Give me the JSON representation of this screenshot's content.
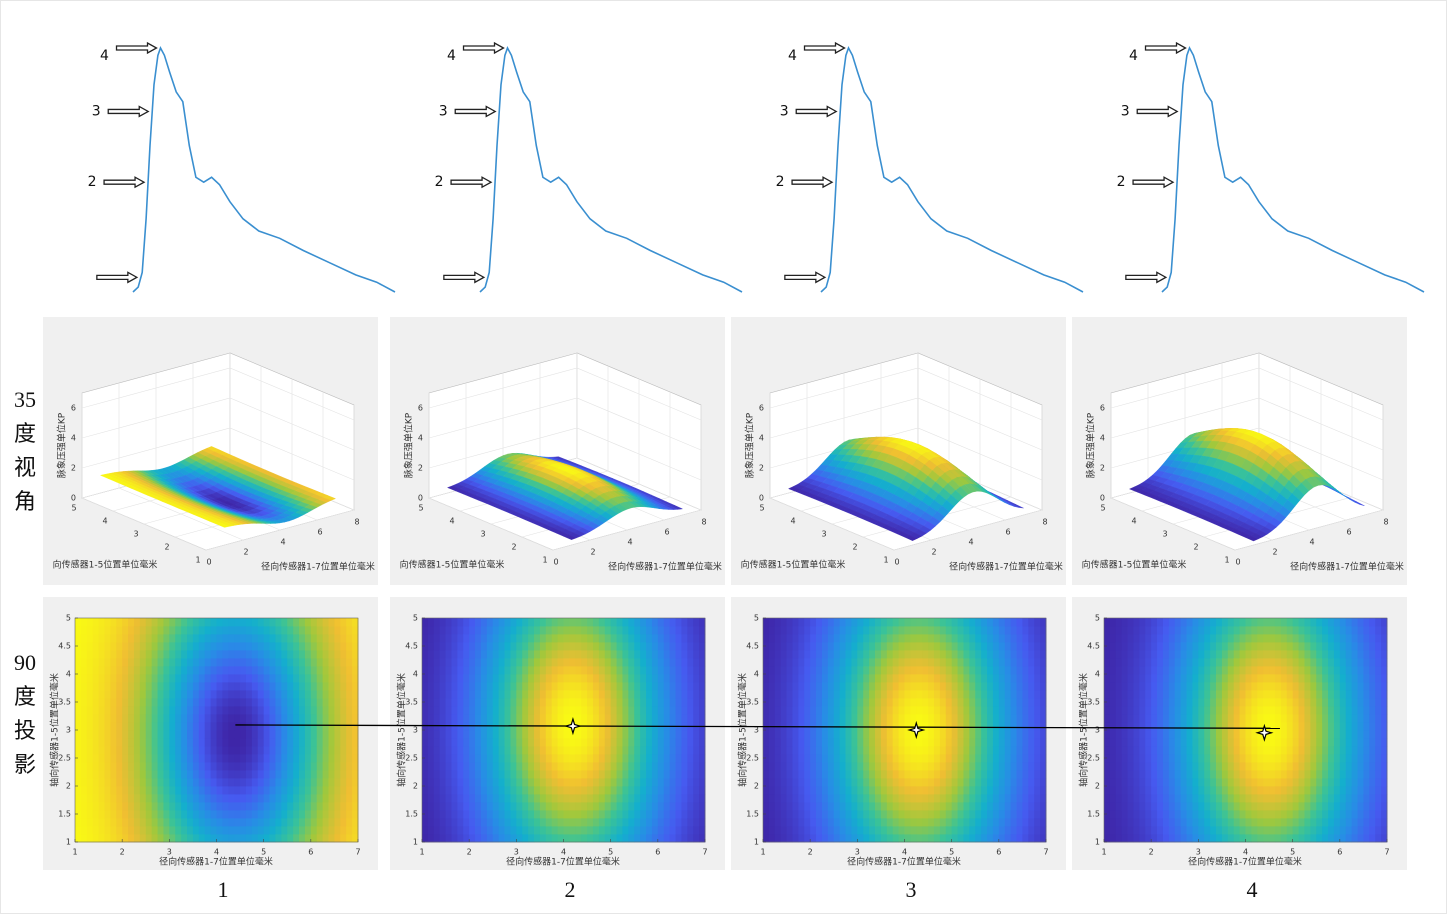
{
  "row_labels": {
    "view_35": [
      "35",
      "度",
      "视",
      "角"
    ],
    "view_90": [
      "90",
      "度",
      "投",
      "影"
    ]
  },
  "waveform": {
    "x": [
      0,
      0.02,
      0.035,
      0.05,
      0.065,
      0.08,
      0.095,
      0.105,
      0.12,
      0.14,
      0.165,
      0.19,
      0.215,
      0.24,
      0.27,
      0.3,
      0.33,
      0.37,
      0.42,
      0.48,
      0.56,
      0.65,
      0.75,
      0.85,
      0.93,
      1
    ],
    "y": [
      0,
      0.02,
      0.08,
      0.3,
      0.6,
      0.85,
      0.97,
      1,
      0.97,
      0.9,
      0.82,
      0.78,
      0.6,
      0.47,
      0.45,
      0.47,
      0.44,
      0.37,
      0.3,
      0.25,
      0.22,
      0.17,
      0.12,
      0.07,
      0.04,
      0
    ]
  },
  "surface_3d": {
    "zlabel": "脉象压强单位KP",
    "ylabel": "向传感器1-5位置单位毫米",
    "xlabel": "径向传感器1-7位置单位毫米",
    "xlim": [
      0,
      8
    ],
    "ylim": [
      1,
      5
    ],
    "zlim": [
      0,
      7
    ],
    "xticks": [
      0,
      2,
      4,
      6,
      8
    ],
    "yticks": [
      1,
      2,
      3,
      4,
      5
    ],
    "zticks": [
      0,
      2,
      4,
      6
    ]
  },
  "heatmap": {
    "xlabel": "径向传感器1-7位置单位毫米",
    "ylabel": "轴向传感器1-5位置单位毫米",
    "xlim": [
      1,
      7
    ],
    "ylim": [
      1,
      5
    ],
    "xticks": [
      1,
      2,
      3,
      4,
      5,
      6,
      7
    ],
    "yticks": [
      1,
      1.5,
      2,
      2.5,
      3,
      3.5,
      4,
      4.5,
      5
    ]
  },
  "columns": [
    {
      "label": "1",
      "arrow_labels": [
        "4",
        "3",
        "2"
      ],
      "base": 1.2,
      "peak": -1.2,
      "center": [
        4.4,
        2.9
      ]
    },
    {
      "label": "2",
      "arrow_labels": [
        "4",
        "3",
        "2"
      ],
      "base": 0.3,
      "peak": 1.9,
      "center": [
        4.2,
        3.1
      ],
      "marker": [
        4.2,
        3.07
      ]
    },
    {
      "label": "3",
      "arrow_labels": [
        "4",
        "3",
        "2"
      ],
      "base": 0.2,
      "peak": 3.7,
      "center": [
        4.3,
        3.0
      ],
      "marker": [
        4.25,
        3.0
      ]
    },
    {
      "label": "4",
      "arrow_labels": [
        "4",
        "3",
        "2"
      ],
      "base": 0.2,
      "peak": 4.3,
      "center": [
        4.5,
        3.0
      ],
      "marker": [
        4.4,
        2.95
      ]
    }
  ],
  "track": {
    "start": [
      4.4,
      3.09
    ],
    "end": [
      4.73,
      3.03
    ]
  }
}
